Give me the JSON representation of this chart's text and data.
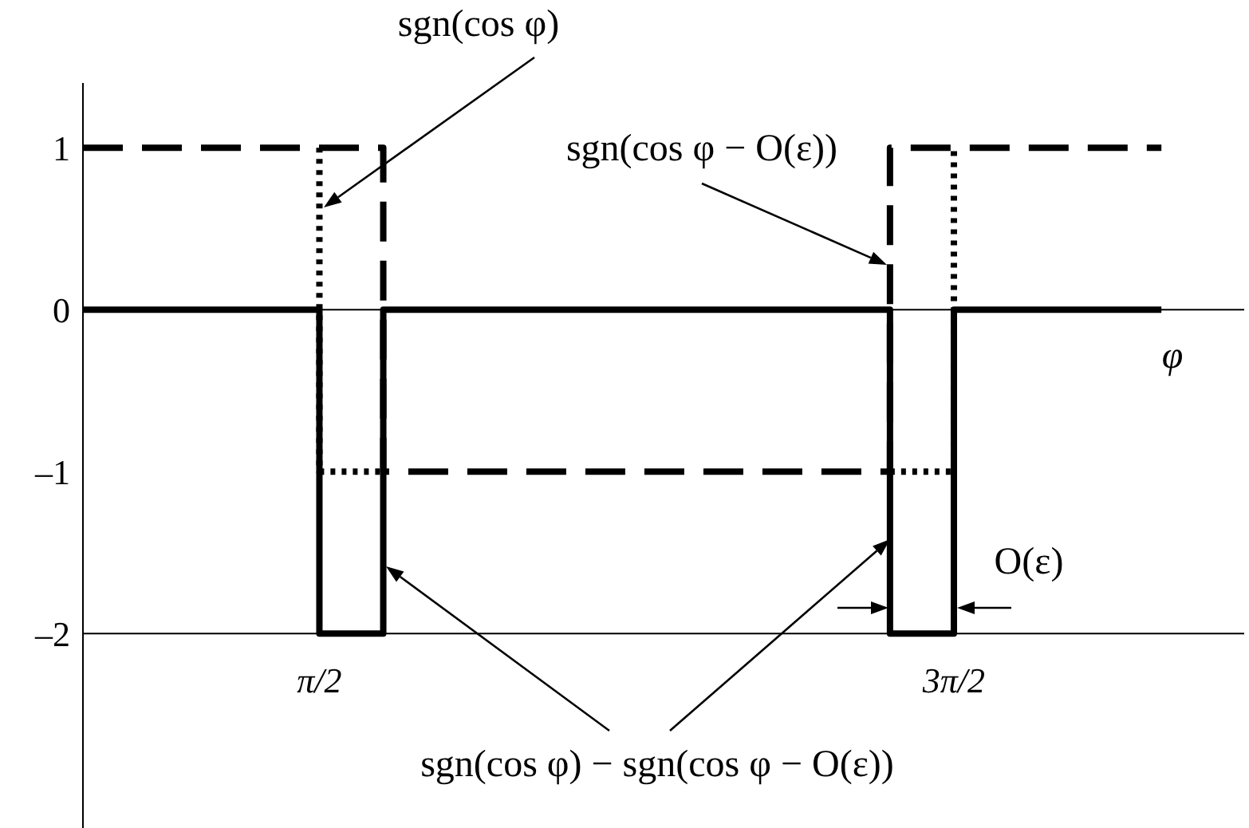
{
  "chart_data": {
    "type": "step",
    "xlabel": "φ",
    "xlim": [
      0.4,
      6.15
    ],
    "xticks": [
      {
        "value": 1.5708,
        "label": "π/2"
      },
      {
        "value": 4.7124,
        "label": "3π/2"
      }
    ],
    "ylim": [
      -3.2,
      1.4
    ],
    "yticks": [
      {
        "value": 1,
        "label": "1"
      },
      {
        "value": 0,
        "label": "0"
      },
      {
        "value": -1,
        "label": "–1"
      },
      {
        "value": -2,
        "label": "–2"
      }
    ],
    "ref_lines": [
      {
        "axis": "y",
        "value": 0,
        "color": "#000000"
      },
      {
        "axis": "y",
        "value": -2,
        "color": "#000000"
      }
    ],
    "series": [
      {
        "color": "#000000",
        "line_style": "dotted",
        "x": [
          1.5708,
          1.5708,
          1.887,
          2.5,
          4.396,
          4.7124,
          4.7124
        ],
        "values": [
          1,
          -1,
          -1,
          null,
          -1,
          -1,
          1
        ]
      },
      {
        "color": "#000000",
        "line_style": "dashed",
        "x": [
          0.4,
          1.887,
          4.396,
          5.74
        ],
        "values": [
          1,
          -1,
          1,
          1
        ]
      },
      {
        "color": "#000000",
        "line_style": "solid",
        "x": [
          0.4,
          1.5708,
          1.887,
          4.396,
          4.7124,
          5.74
        ],
        "values": [
          0,
          -2,
          0,
          -2,
          0,
          0
        ]
      }
    ],
    "marker": "none",
    "annotations": [
      "sgn(cos φ)",
      "sgn(cos φ − O(ε))",
      "O(ε)",
      "sgn(cos φ) − sgn(cos φ − O(ε))"
    ]
  }
}
